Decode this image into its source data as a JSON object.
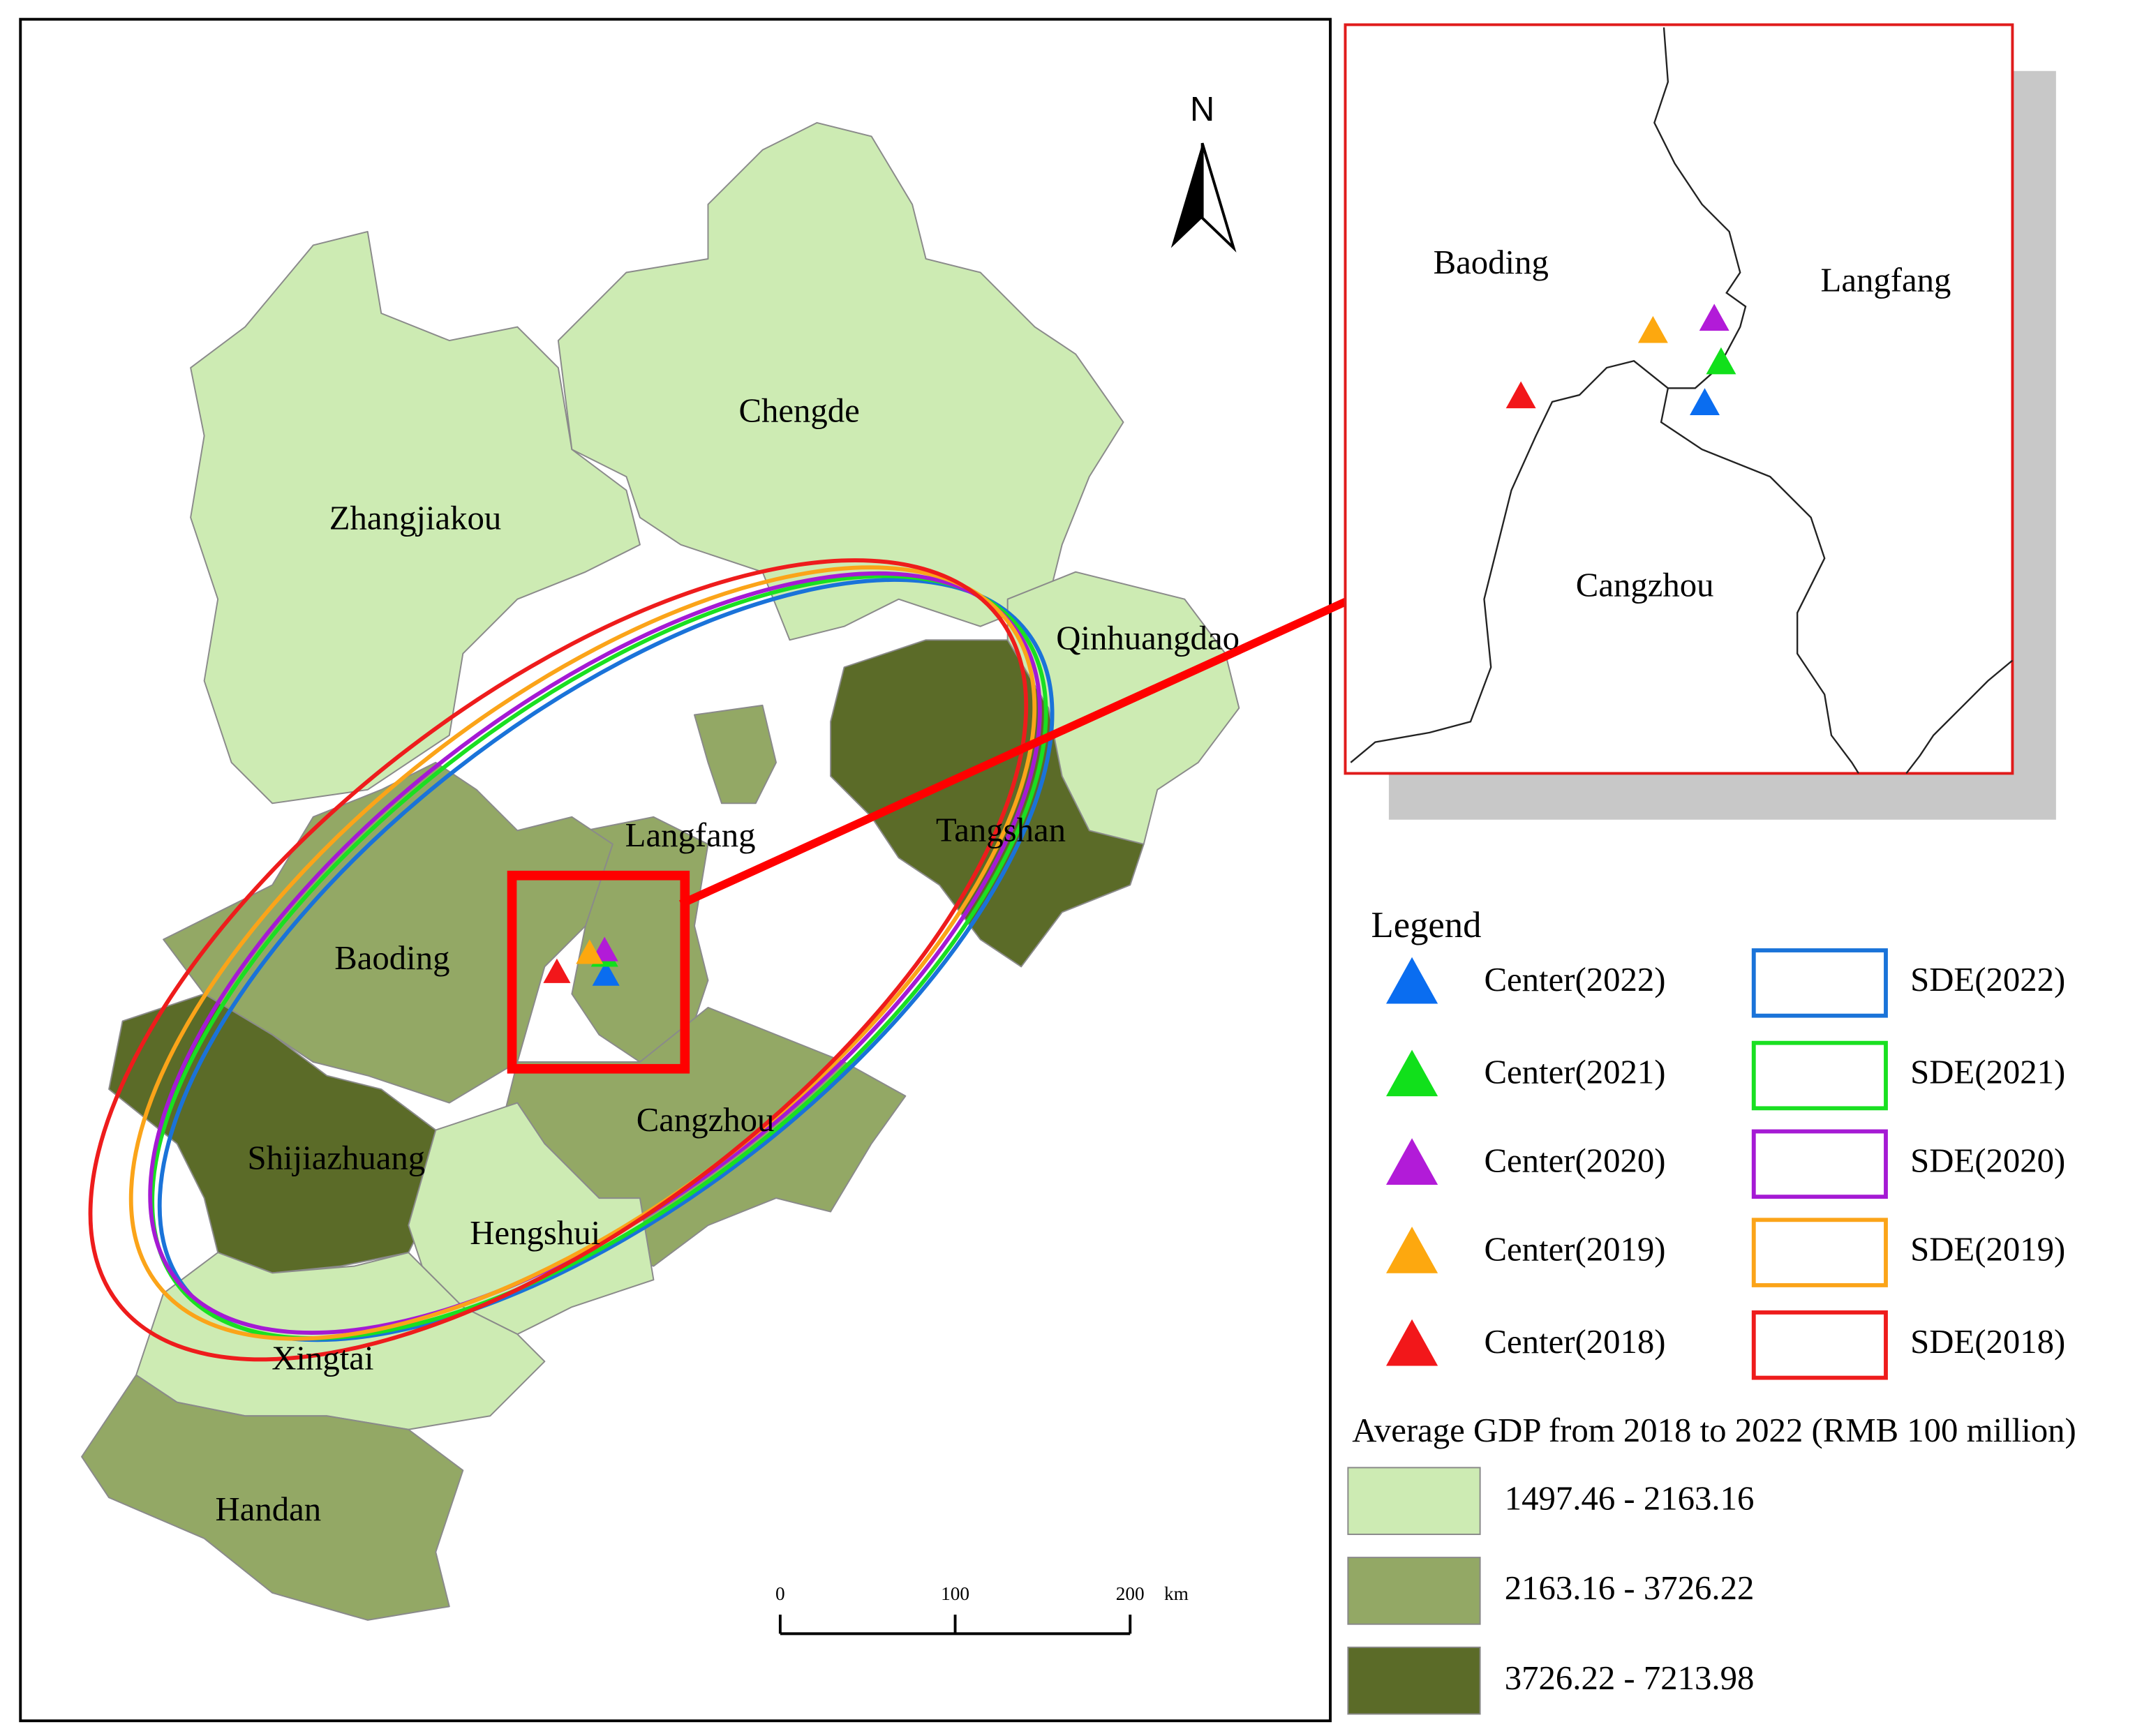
{
  "map": {
    "north": "N",
    "regions": [
      {
        "name": "Zhangjiakou",
        "color": "#cdebb3"
      },
      {
        "name": "Chengde",
        "color": "#cdebb3"
      },
      {
        "name": "Qinhuangdao",
        "color": "#cdebb3"
      },
      {
        "name": "Tangshan",
        "color": "#5b6b28"
      },
      {
        "name": "Langfang",
        "color": "#93a865"
      },
      {
        "name": "Baoding",
        "color": "#93a865"
      },
      {
        "name": "Cangzhou",
        "color": "#93a865"
      },
      {
        "name": "Shijiazhuang",
        "color": "#5b6b28"
      },
      {
        "name": "Hengshui",
        "color": "#cdebb3"
      },
      {
        "name": "Xingtai",
        "color": "#cdebb3"
      },
      {
        "name": "Handan",
        "color": "#93a865"
      }
    ],
    "scale_bar": {
      "ticks": [
        0,
        100,
        200
      ],
      "unit": "km"
    }
  },
  "inset": {
    "labels": [
      "Baoding",
      "Langfang",
      "Cangzhou"
    ]
  },
  "legend": {
    "title": "Legend",
    "centers": [
      {
        "name": "Center(2022)",
        "color": "#0a6df0"
      },
      {
        "name": "Center(2021)",
        "color": "#11e01b"
      },
      {
        "name": "Center(2020)",
        "color": "#b21bd8"
      },
      {
        "name": "Center(2019)",
        "color": "#fda80f"
      },
      {
        "name": "Center(2018)",
        "color": "#f2171a"
      }
    ],
    "ellipses": [
      {
        "name": "SDE(2022)",
        "color": "#1a73d9"
      },
      {
        "name": "SDE(2021)",
        "color": "#19e021"
      },
      {
        "name": "SDE(2020)",
        "color": "#a51ad4"
      },
      {
        "name": "SDE(2019)",
        "color": "#fba419"
      },
      {
        "name": "SDE(2018)",
        "color": "#ee1c1c"
      }
    ],
    "gdp_title": "Average GDP from 2018 to 2022 (RMB 100 million)",
    "classes": [
      {
        "label": "1497.46 - 2163.16",
        "color": "#cdebb3"
      },
      {
        "label": "2163.16 - 3726.22",
        "color": "#93a865"
      },
      {
        "label": "3726.22 - 7213.98",
        "color": "#5b6b28"
      }
    ]
  }
}
